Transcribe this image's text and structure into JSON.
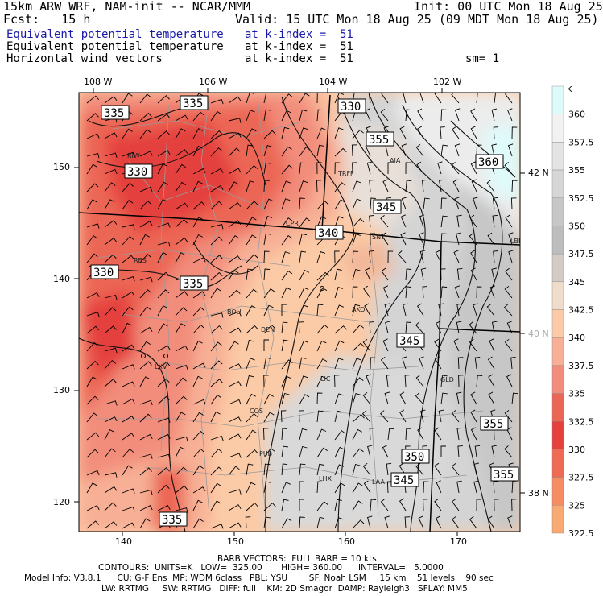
{
  "header": {
    "model": "15km ARW WRF, NAM-init -- NCAR/MMM",
    "init": "Init: 00 UTC Mon 18 Aug 25",
    "fcst": "Fcst:   15 h",
    "valid": "Valid: 15 UTC Mon 18 Aug 25 (09 MDT Mon 18 Aug 25)",
    "fields": [
      {
        "name": "Equivalent potential temperature",
        "level": "at k-index =  51",
        "color": "#1a1aa8"
      },
      {
        "name": "Equivalent potential temperature",
        "level": "at k-index =  51",
        "color": "#000000"
      },
      {
        "name": "Horizontal wind vectors",
        "level": "at k-index =  51",
        "color": "#000000"
      }
    ],
    "sm": "sm= 1"
  },
  "axes": {
    "top_lon": [
      "108 W",
      "106 W",
      "104 W",
      "102 W"
    ],
    "left_ticks": [
      "150",
      "140",
      "130",
      "120"
    ],
    "bottom_ticks": [
      "140",
      "150",
      "160",
      "170"
    ],
    "right_lat": [
      "42 N",
      "40 N",
      "38 N"
    ]
  },
  "colorbar": {
    "unit": "K",
    "labels": [
      "360",
      "357.5",
      "355",
      "352.5",
      "350",
      "347.5",
      "345",
      "342.5",
      "340",
      "337.5",
      "335",
      "332.5",
      "330",
      "327.5",
      "325",
      "322.5"
    ],
    "colors": [
      "#dffafa",
      "#f2f2f2",
      "#e3e3e3",
      "#d6d6d6",
      "#c7c7c7",
      "#bdbdbd",
      "#d4cbc4",
      "#f0dccb",
      "#fbcaa6",
      "#f7b095",
      "#f28d7b",
      "#ec6655",
      "#e4413c",
      "#ef6b53",
      "#f58c62",
      "#f9a972"
    ]
  },
  "map": {
    "cities": [
      "RIW",
      "CPR",
      "TRFF",
      "AIA",
      "SNY",
      "RBS",
      "BOU",
      "DEN",
      "AKO",
      "LXV",
      "LIC",
      "GLD",
      "COS",
      "PUB",
      "LHX",
      "LAA",
      "LBE"
    ],
    "contour_labels": [
      "335",
      "335",
      "330",
      "330",
      "355",
      "360",
      "345",
      "340",
      "330",
      "335",
      "345",
      "355",
      "350",
      "345",
      "355",
      "335"
    ]
  },
  "footer": {
    "line1": "BARB VECTORS:  FULL BARB = 10 kts",
    "line2": "CONTOURS:  UNITS=K   LOW=  325.00       HIGH= 360.00      INTERVAL=   5.0000",
    "line3": "Model Info: V3.8.1      CU: G-F Ens  MP: WDM 6class   PBL: YSU        SF: Noah LSM     15 km    51 levels    90 sec",
    "line4": "LW: RRTMG     SW: RRTMG   DIFF: full    KM: 2D Smagor  DAMP: Rayleigh3   SFLAY: MM5"
  }
}
